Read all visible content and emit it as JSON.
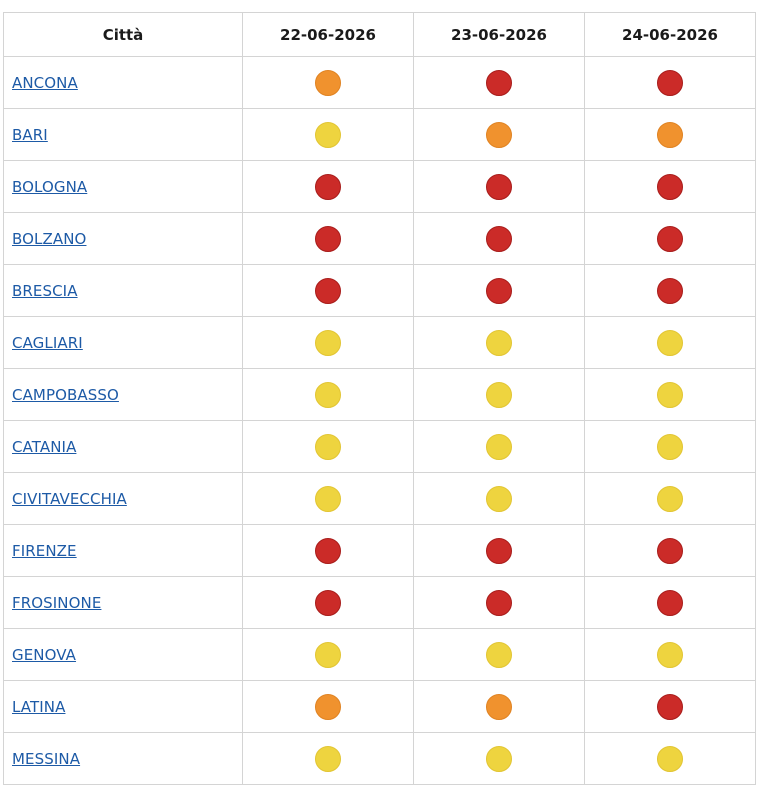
{
  "table": {
    "header": {
      "city": "Città",
      "days": [
        "22-06-2026",
        "23-06-2026",
        "24-06-2026"
      ]
    },
    "level_colors": {
      "yellow": "#eed43f",
      "orange": "#f0922e",
      "red": "#cb2b28"
    },
    "rows": [
      {
        "city": "ANCONA",
        "levels": [
          "orange",
          "red",
          "red"
        ]
      },
      {
        "city": "BARI",
        "levels": [
          "yellow",
          "orange",
          "orange"
        ]
      },
      {
        "city": "BOLOGNA",
        "levels": [
          "red",
          "red",
          "red"
        ]
      },
      {
        "city": "BOLZANO",
        "levels": [
          "red",
          "red",
          "red"
        ]
      },
      {
        "city": "BRESCIA",
        "levels": [
          "red",
          "red",
          "red"
        ]
      },
      {
        "city": "CAGLIARI",
        "levels": [
          "yellow",
          "yellow",
          "yellow"
        ]
      },
      {
        "city": "CAMPOBASSO",
        "levels": [
          "yellow",
          "yellow",
          "yellow"
        ]
      },
      {
        "city": "CATANIA",
        "levels": [
          "yellow",
          "yellow",
          "yellow"
        ]
      },
      {
        "city": "CIVITAVECCHIA",
        "levels": [
          "yellow",
          "yellow",
          "yellow"
        ]
      },
      {
        "city": "FIRENZE",
        "levels": [
          "red",
          "red",
          "red"
        ]
      },
      {
        "city": "FROSINONE",
        "levels": [
          "red",
          "red",
          "red"
        ]
      },
      {
        "city": "GENOVA",
        "levels": [
          "yellow",
          "yellow",
          "yellow"
        ]
      },
      {
        "city": "LATINA",
        "levels": [
          "orange",
          "orange",
          "red"
        ]
      },
      {
        "city": "MESSINA",
        "levels": [
          "yellow",
          "yellow",
          "yellow"
        ]
      }
    ]
  }
}
